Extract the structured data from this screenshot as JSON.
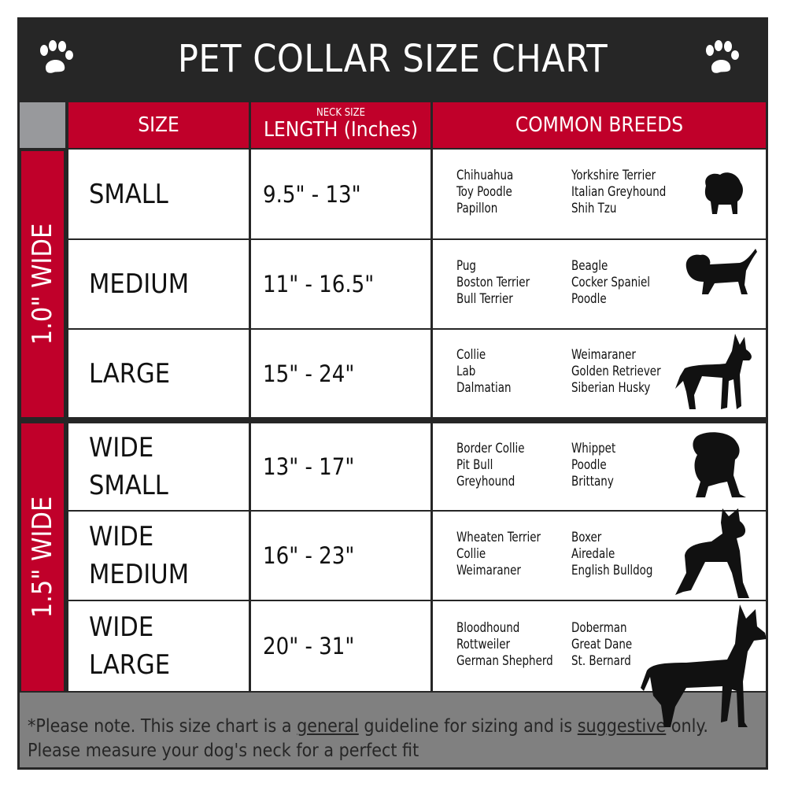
{
  "title": "PET COLLAR SIZE CHART",
  "icons": {
    "left": "paw-print-icon",
    "right": "paw-print-icon"
  },
  "colors": {
    "accent_red": "#c0002a",
    "title_bg": "#262626",
    "footer_bg": "#808080"
  },
  "headers": {
    "size": "SIZE",
    "length_small": "NECK SIZE",
    "length": "LENGTH (Inches)",
    "breeds": "COMMON BREEDS"
  },
  "groups": [
    {
      "label": "1.0\" WIDE"
    },
    {
      "label": "1.5\" WIDE"
    }
  ],
  "rows": [
    {
      "size": "SMALL",
      "length": "9.5\" - 13\"",
      "breeds_a": [
        "Chihuahua",
        "Toy Poodle",
        "Papillon"
      ],
      "breeds_b": [
        "Yorkshire Terrier",
        "Italian Greyhound",
        "Shih Tzu"
      ],
      "icon": "small-dog-silhouette-icon"
    },
    {
      "size": "MEDIUM",
      "length": "11\" - 16.5\"",
      "breeds_a": [
        "Pug",
        "Boston Terrier",
        "Bull Terrier"
      ],
      "breeds_b": [
        "Beagle",
        "Cocker Spaniel",
        "Poodle"
      ],
      "icon": "medium-dog-silhouette-icon"
    },
    {
      "size": "LARGE",
      "length": "15\" - 24\"",
      "breeds_a": [
        "Collie",
        "Lab",
        "Dalmatian"
      ],
      "breeds_b": [
        "Weimaraner",
        "Golden Retriever",
        "Siberian Husky"
      ],
      "icon": "large-dog-silhouette-icon"
    },
    {
      "size": "WIDE SMALL",
      "length": "13\" - 17\"",
      "breeds_a": [
        "Border Collie",
        "Pit Bull",
        "Greyhound"
      ],
      "breeds_b": [
        "Whippet",
        "Poodle",
        "Brittany"
      ],
      "icon": "bulldog-silhouette-icon"
    },
    {
      "size": "WIDE MEDIUM",
      "length": "16\" - 23\"",
      "breeds_a": [
        "Wheaten Terrier",
        "Collie",
        "Weimaraner"
      ],
      "breeds_b": [
        "Boxer",
        "Airedale",
        "English Bulldog"
      ],
      "icon": "pitbull-silhouette-icon"
    },
    {
      "size": "WIDE LARGE",
      "length": "20\" - 31\"",
      "breeds_a": [
        "Bloodhound",
        "Rottweiler",
        "German Shepherd"
      ],
      "breeds_b": [
        "Doberman",
        "Great Dane",
        "St. Bernard"
      ],
      "icon": "doberman-silhouette-icon"
    }
  ],
  "footer": {
    "p1": "*Please note. This size chart is a",
    "u1": "general",
    "p2": "guideline for sizing and is",
    "u2": "suggestive",
    "p3": "only.",
    "line2": "Please measure your dog's neck for a perfect fit"
  }
}
